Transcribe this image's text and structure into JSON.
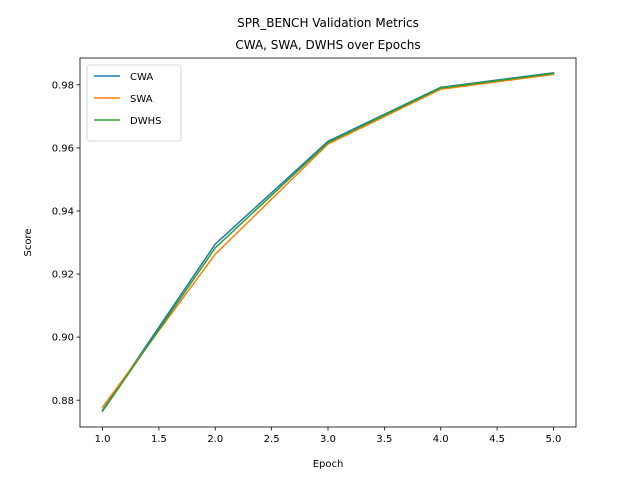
{
  "chart_data": {
    "type": "line",
    "title": "SPR_BENCH Validation Metrics",
    "subtitle": "CWA, SWA, DWHS over Epochs",
    "xlabel": "Epoch",
    "ylabel": "Score",
    "xlim": [
      0.8,
      5.2
    ],
    "ylim": [
      0.8715,
      0.9885
    ],
    "xticks": [
      1.0,
      1.5,
      2.0,
      2.5,
      3.0,
      3.5,
      4.0,
      4.5,
      5.0
    ],
    "xtick_labels": [
      "1.0",
      "1.5",
      "2.0",
      "2.5",
      "3.0",
      "3.5",
      "4.0",
      "4.5",
      "5.0"
    ],
    "yticks": [
      0.88,
      0.9,
      0.92,
      0.94,
      0.96,
      0.98
    ],
    "ytick_labels": [
      "0.88",
      "0.90",
      "0.92",
      "0.94",
      "0.96",
      "0.98"
    ],
    "grid": false,
    "legend_position": "top-left",
    "x": [
      1,
      2,
      3,
      4,
      5
    ],
    "series": [
      {
        "name": "CWA",
        "color": "#1f77b4",
        "values": [
          0.8768,
          0.9295,
          0.9621,
          0.9792,
          0.9838
        ]
      },
      {
        "name": "SWA",
        "color": "#ff7f0e",
        "values": [
          0.8778,
          0.9263,
          0.9612,
          0.9786,
          0.9833
        ]
      },
      {
        "name": "DWHS",
        "color": "#2ca02c",
        "values": [
          0.8765,
          0.9283,
          0.9617,
          0.979,
          0.9836
        ]
      }
    ]
  }
}
